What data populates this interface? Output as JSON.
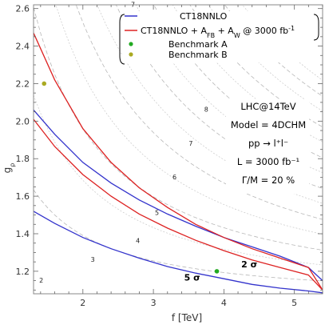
{
  "chart_data": {
    "type": "line",
    "xlabel": "f [TeV]",
    "ylabel": "g_ρ",
    "xlim": [
      1.3,
      5.4
    ],
    "ylim": [
      1.08,
      2.62
    ],
    "xticks": [
      2,
      3,
      4,
      5
    ],
    "yticks": [
      1.2,
      1.4,
      1.6,
      1.8,
      2.0,
      2.2,
      2.4,
      2.6
    ],
    "grid": false,
    "legend_position": "top-right",
    "legend": [
      {
        "label": "CT18NNLO",
        "marker": "line",
        "color": "#3333cc"
      },
      {
        "label": "CT18NNLO + A_FB + A_W @ 3000 fb^-1",
        "marker": "line",
        "color": "#dd2222"
      },
      {
        "label": "Benchmark A",
        "marker": "dot",
        "color": "#22aa22"
      },
      {
        "label": "Benchmark B",
        "marker": "dot",
        "color": "#aaaa22"
      }
    ],
    "info_box": [
      "LHC@14TeV",
      "Model = 4DCHM",
      "pp → l⁺l⁻",
      "L = 3000 fb⁻¹",
      "Γ/M = 20 %"
    ],
    "series": [
      {
        "name": "CT18NNLO",
        "sigma": "2 σ",
        "color": "#3333cc",
        "x": [
          1.3,
          1.6,
          2.0,
          2.4,
          2.8,
          3.2,
          3.6,
          4.0,
          4.4,
          4.8,
          5.2,
          5.4
        ],
        "y": [
          2.06,
          1.93,
          1.78,
          1.67,
          1.58,
          1.505,
          1.44,
          1.38,
          1.33,
          1.28,
          1.22,
          1.15
        ]
      },
      {
        "name": "CT18NNLO",
        "sigma": "5 σ",
        "color": "#3333cc",
        "x": [
          1.3,
          1.6,
          2.0,
          2.4,
          2.8,
          3.2,
          3.6,
          4.0,
          4.4,
          4.8,
          5.2,
          5.4
        ],
        "y": [
          1.52,
          1.455,
          1.38,
          1.32,
          1.27,
          1.225,
          1.19,
          1.16,
          1.13,
          1.11,
          1.095,
          1.085
        ]
      },
      {
        "name": "CT18NNLO + A_FB + A_W @ 3000 fb^-1",
        "sigma": "2 σ",
        "color": "#dd2222",
        "x": [
          1.3,
          1.6,
          2.0,
          2.4,
          2.8,
          3.2,
          3.6,
          4.0,
          4.4,
          4.8,
          5.2,
          5.4
        ],
        "y": [
          2.47,
          2.22,
          1.96,
          1.78,
          1.645,
          1.54,
          1.45,
          1.38,
          1.32,
          1.27,
          1.22,
          1.1
        ]
      },
      {
        "name": "CT18NNLO + A_FB + A_W @ 3000 fb^-1",
        "sigma": "5 σ",
        "color": "#dd2222",
        "x": [
          1.3,
          1.6,
          2.0,
          2.4,
          2.8,
          3.2,
          3.6,
          4.0,
          4.4,
          4.8,
          5.2,
          5.4
        ],
        "y": [
          2.01,
          1.865,
          1.715,
          1.6,
          1.505,
          1.43,
          1.365,
          1.31,
          1.26,
          1.22,
          1.18,
          1.1
        ]
      }
    ],
    "points": [
      {
        "name": "Benchmark A",
        "x": 3.9,
        "y": 1.2,
        "color": "#22aa22"
      },
      {
        "name": "Benchmark B",
        "x": 1.45,
        "y": 2.2,
        "color": "#aaaa22"
      }
    ],
    "sigma_labels": [
      {
        "text": "2 σ",
        "x": 4.36,
        "y": 1.22
      },
      {
        "text": "5 σ",
        "x": 3.55,
        "y": 1.15
      }
    ],
    "background_contours": {
      "style": "dashed gray",
      "levels": [
        2,
        3,
        4,
        5,
        6,
        7,
        8
      ],
      "labels": [
        {
          "text": "2",
          "x": 1.41,
          "y": 1.14
        },
        {
          "text": "3",
          "x": 2.14,
          "y": 1.25
        },
        {
          "text": "4",
          "x": 2.78,
          "y": 1.35
        },
        {
          "text": "5",
          "x": 3.05,
          "y": 1.5
        },
        {
          "text": "6",
          "x": 3.3,
          "y": 1.69
        },
        {
          "text": "7",
          "x": 3.53,
          "y": 1.87
        },
        {
          "text": "8",
          "x": 3.75,
          "y": 2.05
        },
        {
          "text": "7",
          "x": 2.71,
          "y": 2.61
        }
      ]
    }
  }
}
